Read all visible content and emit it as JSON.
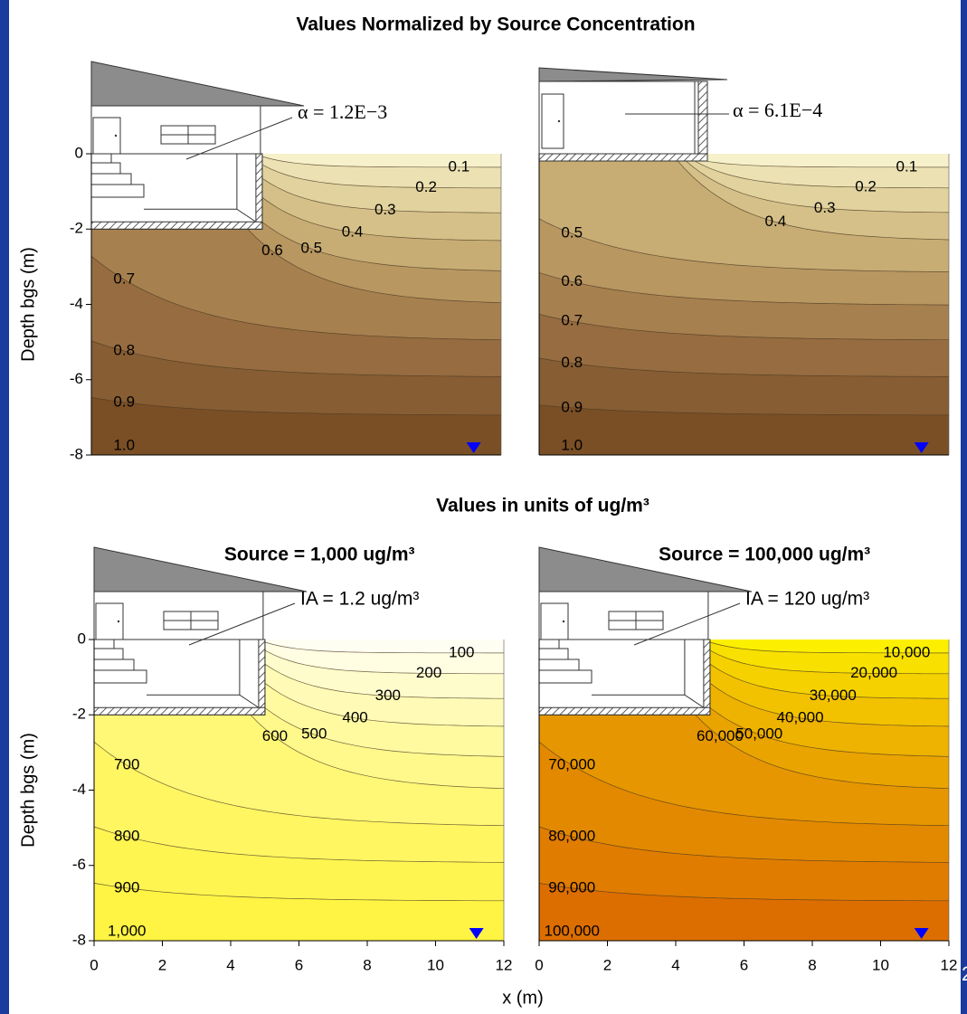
{
  "headings": {
    "top": "Values Normalized by Source Concentration",
    "bottom": "Values in units of ug/m³"
  },
  "x_label": "x (m)",
  "slide_number": "2",
  "chart_data": [
    {
      "type": "contour",
      "annotation": "α = 1.2E−3",
      "ylabel": "Depth bgs (m)",
      "foundation": "basement",
      "xlim": [
        0,
        12
      ],
      "ylim": [
        -8,
        0
      ],
      "yticks": [
        0,
        -2,
        -4,
        -6,
        -8
      ],
      "levels": [
        0.1,
        0.2,
        0.3,
        0.4,
        0.5,
        0.6,
        0.7,
        0.8,
        0.9,
        1.0
      ],
      "value_labels": [
        "0.1",
        "0.2",
        "0.3",
        "0.4",
        "0.5",
        "0.6",
        "0.7",
        "0.8",
        "0.9",
        "1.0"
      ],
      "surface_color": "#f6f0cb",
      "colors": [
        "#ece1b3",
        "#e1d29e",
        "#d5c089",
        "#c7ad74",
        "#b89761",
        "#a7804f",
        "#966c40",
        "#875d33",
        "#7a4f25",
        "#6b3f15"
      ]
    },
    {
      "type": "contour",
      "annotation": "α = 6.1E−4",
      "foundation": "slab",
      "xlim": [
        0,
        12
      ],
      "ylim": [
        -8,
        0
      ],
      "levels": [
        0.1,
        0.2,
        0.3,
        0.4,
        0.5,
        0.6,
        0.7,
        0.8,
        0.9,
        1.0
      ],
      "value_labels": [
        "0.1",
        "0.2",
        "0.3",
        "0.4",
        "0.5",
        "0.6",
        "0.7",
        "0.8",
        "0.9",
        "1.0"
      ],
      "surface_color": "#f6f0cb",
      "colors": [
        "#ece1b3",
        "#e1d29e",
        "#d5c089",
        "#c7ad74",
        "#b89761",
        "#a7804f",
        "#966c40",
        "#875d33",
        "#7a4f25",
        "#6b3f15"
      ]
    },
    {
      "type": "contour",
      "title": "Source = 1,000 ug/m³",
      "annotation": "IA = 1.2 ug/m³",
      "ylabel": "Depth bgs (m)",
      "foundation": "basement",
      "xlim": [
        0,
        12
      ],
      "ylim": [
        -8,
        0
      ],
      "xticks": [
        0,
        2,
        4,
        6,
        8,
        10,
        12
      ],
      "yticks": [
        0,
        -2,
        -4,
        -6,
        -8
      ],
      "levels": [
        100,
        200,
        300,
        400,
        500,
        600,
        700,
        800,
        900,
        1000
      ],
      "value_labels": [
        "100",
        "200",
        "300",
        "400",
        "500",
        "600",
        "700",
        "800",
        "900",
        "1,000"
      ],
      "surface_color": "#fffef2",
      "colors": [
        "#fffde2",
        "#fffccc",
        "#fffbb6",
        "#fffaa0",
        "#fff88b",
        "#fff776",
        "#fff662",
        "#fff551",
        "#fff443",
        "#fff235"
      ]
    },
    {
      "type": "contour",
      "title": "Source = 100,000 ug/m³",
      "annotation": "IA = 120 ug/m³",
      "foundation": "basement",
      "xlim": [
        0,
        12
      ],
      "ylim": [
        -8,
        0
      ],
      "xticks": [
        0,
        2,
        4,
        6,
        8,
        10,
        12
      ],
      "levels": [
        10000,
        20000,
        30000,
        40000,
        50000,
        60000,
        70000,
        80000,
        90000,
        100000
      ],
      "value_labels": [
        "10,000",
        "20,000",
        "30,000",
        "40,000",
        "50,000",
        "60,000",
        "70,000",
        "80,000",
        "90,000",
        "100,000"
      ],
      "surface_color": "#fcf000",
      "colors": [
        "#f8e000",
        "#f5d100",
        "#f2c200",
        "#eeb200",
        "#eaa400",
        "#e69600",
        "#e38900",
        "#e07c00",
        "#dc6e00",
        "#d86200"
      ]
    }
  ]
}
